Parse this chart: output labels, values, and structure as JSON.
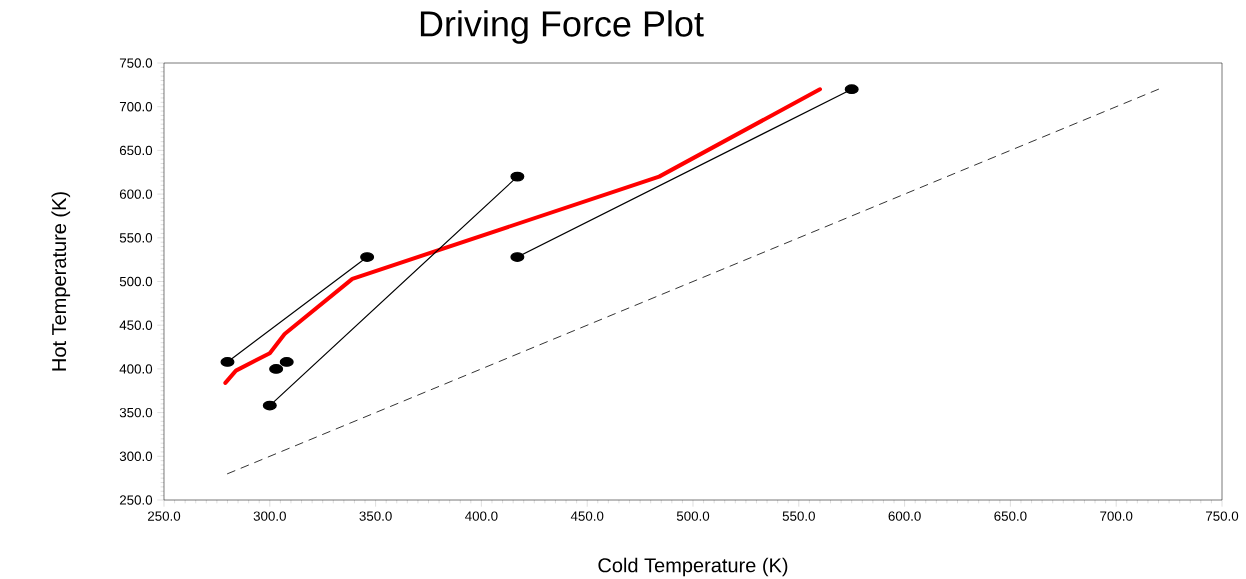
{
  "chart_data": {
    "type": "line",
    "title": "Driving Force Plot",
    "xlabel": "Cold Temperature (K)",
    "ylabel": "Hot Temperature (K)",
    "xlim": [
      250,
      750
    ],
    "ylim": [
      250,
      750
    ],
    "xticks": [
      {
        "value": 250,
        "label": "250.0"
      },
      {
        "value": 300,
        "label": "300.0"
      },
      {
        "value": 350,
        "label": "350.0"
      },
      {
        "value": 400,
        "label": "400.0"
      },
      {
        "value": 450,
        "label": "450.0"
      },
      {
        "value": 500,
        "label": "500.0"
      },
      {
        "value": 550,
        "label": "550.0"
      },
      {
        "value": 600,
        "label": "600.0"
      },
      {
        "value": 650,
        "label": "650.0"
      },
      {
        "value": 700,
        "label": "700.0"
      },
      {
        "value": 750,
        "label": "750.0"
      }
    ],
    "yticks": [
      {
        "value": 250,
        "label": "250.0"
      },
      {
        "value": 300,
        "label": "300.0"
      },
      {
        "value": 350,
        "label": "350.0"
      },
      {
        "value": 400,
        "label": "400.0"
      },
      {
        "value": 450,
        "label": "450.0"
      },
      {
        "value": 500,
        "label": "500.0"
      },
      {
        "value": 550,
        "label": "550.0"
      },
      {
        "value": 600,
        "label": "600.0"
      },
      {
        "value": 650,
        "label": "650.0"
      },
      {
        "value": 700,
        "label": "700.0"
      },
      {
        "value": 750,
        "label": "750.0"
      }
    ],
    "grid": false,
    "series": [
      {
        "color": "#ff0000",
        "x": [
          279,
          284,
          300,
          307,
          339,
          484,
          560
        ],
        "values": [
          384,
          398,
          418,
          440,
          503,
          620,
          720
        ],
        "line_style": "solid",
        "marker": "none"
      },
      {
        "color": "#000000",
        "x": [
          280,
          346
        ],
        "values": [
          408,
          528
        ],
        "line_style": "solid",
        "marker": "circle"
      },
      {
        "color": "#000000",
        "x": [
          300,
          417
        ],
        "values": [
          358,
          620
        ],
        "line_style": "solid",
        "marker": "circle"
      },
      {
        "color": "#000000",
        "x": [
          417,
          575
        ],
        "values": [
          528,
          720
        ],
        "line_style": "solid",
        "marker": "circle"
      },
      {
        "type": "scatter",
        "color": "#000000",
        "x": [
          303,
          308
        ],
        "values": [
          400,
          408
        ],
        "marker": "circle"
      },
      {
        "color": "#000000",
        "x": [
          280,
          720
        ],
        "values": [
          280,
          720
        ],
        "line_style": "dashed",
        "marker": "none"
      }
    ]
  }
}
